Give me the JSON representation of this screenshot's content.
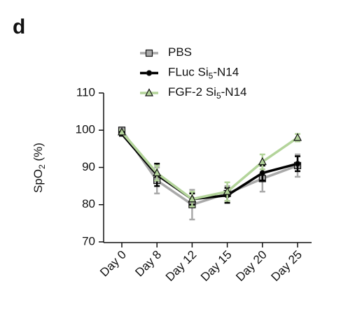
{
  "panel_label": "d",
  "chart_data": {
    "type": "line",
    "ylabel": [
      "SpO",
      "2",
      " (%)"
    ],
    "categories": [
      "Day 0",
      "Day 8",
      "Day 12",
      "Day 15",
      "Day 20",
      "Day 25"
    ],
    "ylim": [
      70,
      110
    ],
    "yticks": [
      70,
      80,
      90,
      100,
      110
    ],
    "series": [
      {
        "name": [
          "PBS"
        ],
        "color": "#a9a9a9",
        "marker": "square",
        "values": [
          100,
          86.5,
          80,
          83,
          87,
          90.5
        ],
        "errors": [
          0.5,
          3.5,
          4,
          2,
          3.5,
          3
        ]
      },
      {
        "name": [
          "FLuc Si",
          "5",
          "-N14"
        ],
        "color": "#000000",
        "marker": "circle",
        "values": [
          99,
          88,
          81.5,
          82.5,
          88.5,
          91
        ],
        "errors": [
          0.5,
          3,
          1.5,
          2,
          2,
          2
        ]
      },
      {
        "name": [
          "FGF-2 Si",
          "5",
          "-N14"
        ],
        "color": "#b3d49a",
        "marker": "triangle",
        "values": [
          99.5,
          88.5,
          81.5,
          83.5,
          91.5,
          98
        ],
        "errors": [
          0.5,
          2,
          2,
          2.5,
          2,
          1
        ]
      }
    ]
  }
}
